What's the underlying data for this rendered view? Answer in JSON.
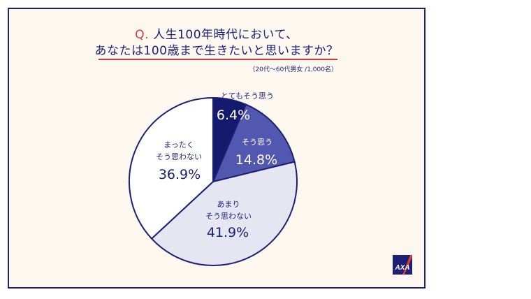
{
  "question": {
    "prefix": "Q.",
    "line1": "人生100年時代において、",
    "line2": "あなたは100歳まで生きたいと思いますか？"
  },
  "note": "（20代～60代男女 /1,000名）",
  "logo": {
    "text": "AXA",
    "color": "#1c1f73",
    "accent": "#d33a3a"
  },
  "colors": {
    "frame": "#1c1f73",
    "background": "#fdf8ef",
    "title": "#1c1f73",
    "accent": "#d33a3a"
  },
  "chart_data": {
    "type": "pie",
    "title": "人生100年時代において、あなたは100歳まで生きたいと思いますか？",
    "series": [
      {
        "name": "とてもそう思う",
        "label_lines": [
          "とてもそう思う"
        ],
        "value": 6.4,
        "value_label": "6.4%",
        "color": "#151a6e",
        "text_color": "#ffffff"
      },
      {
        "name": "そう思う",
        "label_lines": [
          "そう思う"
        ],
        "value": 14.8,
        "value_label": "14.8%",
        "color": "#5457b0",
        "text_color": "#ffffff"
      },
      {
        "name": "あまりそう思わない",
        "label_lines": [
          "あまり",
          "そう思わない"
        ],
        "value": 41.9,
        "value_label": "41.9%",
        "color": "#e5e6f2",
        "text_color": "#1c1f73"
      },
      {
        "name": "まったくそう思わない",
        "label_lines": [
          "まったく",
          "そう思わない"
        ],
        "value": 36.9,
        "value_label": "36.9%",
        "color": "#ffffff",
        "text_color": "#1c1f73"
      }
    ]
  }
}
